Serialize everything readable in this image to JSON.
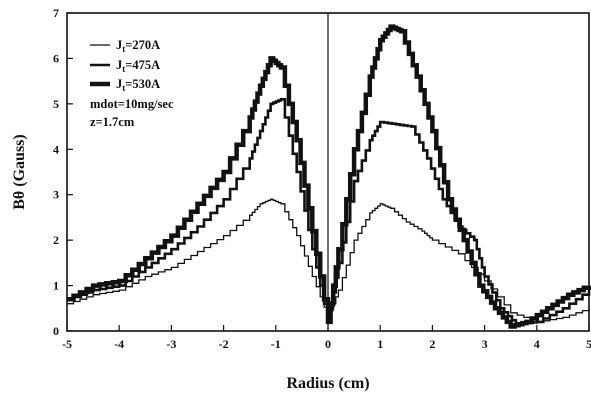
{
  "chart_data": {
    "type": "line",
    "xlabel": "Radius (cm)",
    "ylabel": "Bθ (Gauss)",
    "xlim": [
      -5,
      5
    ],
    "ylim": [
      0,
      7
    ],
    "xticks": [
      "-5",
      "-4",
      "-3",
      "-2",
      "-1",
      "0",
      "1",
      "2",
      "3",
      "4",
      "5"
    ],
    "yticks": [
      "0",
      "1",
      "2",
      "3",
      "4",
      "5",
      "6",
      "7"
    ],
    "legend_position": "top-left",
    "grid": false,
    "line_color": "#111111",
    "series": [
      {
        "name": "Jt=270A",
        "label_main": "J",
        "label_sub": "t",
        "label_rest": "=270A",
        "weight": "thin",
        "x": [
          -5,
          -4.5,
          -4,
          -3.5,
          -3,
          -2.5,
          -2,
          -1.5,
          -1.3,
          -1.1,
          -0.9,
          -0.6,
          -0.3,
          0,
          0.2,
          0.5,
          0.8,
          1,
          1.2,
          1.5,
          1.8,
          2,
          2.5,
          3,
          3.5,
          4,
          4.5,
          5
        ],
        "y": [
          0.6,
          0.8,
          0.9,
          1.2,
          1.4,
          1.75,
          2.1,
          2.55,
          2.8,
          2.9,
          2.8,
          2.1,
          1.2,
          0.3,
          0.9,
          2.0,
          2.6,
          2.8,
          2.7,
          2.4,
          2.2,
          2.0,
          1.7,
          1.1,
          0.4,
          0.2,
          0.3,
          0.5
        ]
      },
      {
        "name": "Jt=475A",
        "label_main": "J",
        "label_sub": "t",
        "label_rest": "=475A",
        "weight": "medium",
        "x": [
          -5,
          -4.5,
          -4,
          -3.5,
          -3,
          -2.5,
          -2,
          -1.5,
          -1.3,
          -1.1,
          -0.9,
          -0.6,
          -0.3,
          0,
          0.2,
          0.5,
          0.8,
          1,
          1.3,
          1.6,
          1.9,
          2.2,
          2.5,
          2.8,
          3,
          3.3,
          3.6,
          4,
          4.5,
          5
        ],
        "y": [
          0.7,
          0.9,
          1.0,
          1.4,
          1.8,
          2.3,
          2.9,
          3.8,
          4.4,
          5.0,
          5.1,
          3.5,
          1.8,
          0.2,
          1.5,
          3.3,
          4.2,
          4.6,
          4.55,
          4.5,
          3.8,
          2.9,
          2.3,
          2.0,
          1.2,
          0.5,
          0.15,
          0.2,
          0.5,
          0.9
        ]
      },
      {
        "name": "Jt=530A",
        "label_main": "J",
        "label_sub": "t",
        "label_rest": "=530A",
        "weight": "thick",
        "x": [
          -5,
          -4.5,
          -4,
          -3.5,
          -3,
          -2.5,
          -2,
          -1.5,
          -1.3,
          -1.1,
          -0.9,
          -0.6,
          -0.3,
          0,
          0.2,
          0.5,
          0.8,
          1,
          1.2,
          1.4,
          1.7,
          2,
          2.3,
          2.6,
          2.9,
          3.2,
          3.5,
          3.8,
          4.2,
          4.6,
          5
        ],
        "y": [
          0.7,
          1.0,
          1.1,
          1.6,
          2.1,
          2.8,
          3.5,
          4.7,
          5.4,
          6.0,
          5.8,
          4.2,
          2.2,
          0.2,
          1.8,
          4.0,
          5.6,
          6.4,
          6.7,
          6.6,
          5.6,
          4.4,
          2.9,
          2.0,
          1.0,
          0.5,
          0.1,
          0.2,
          0.5,
          0.8,
          1.0
        ]
      }
    ],
    "annotations": [
      "mdot=10mg/sec",
      "z=1.7cm"
    ]
  }
}
